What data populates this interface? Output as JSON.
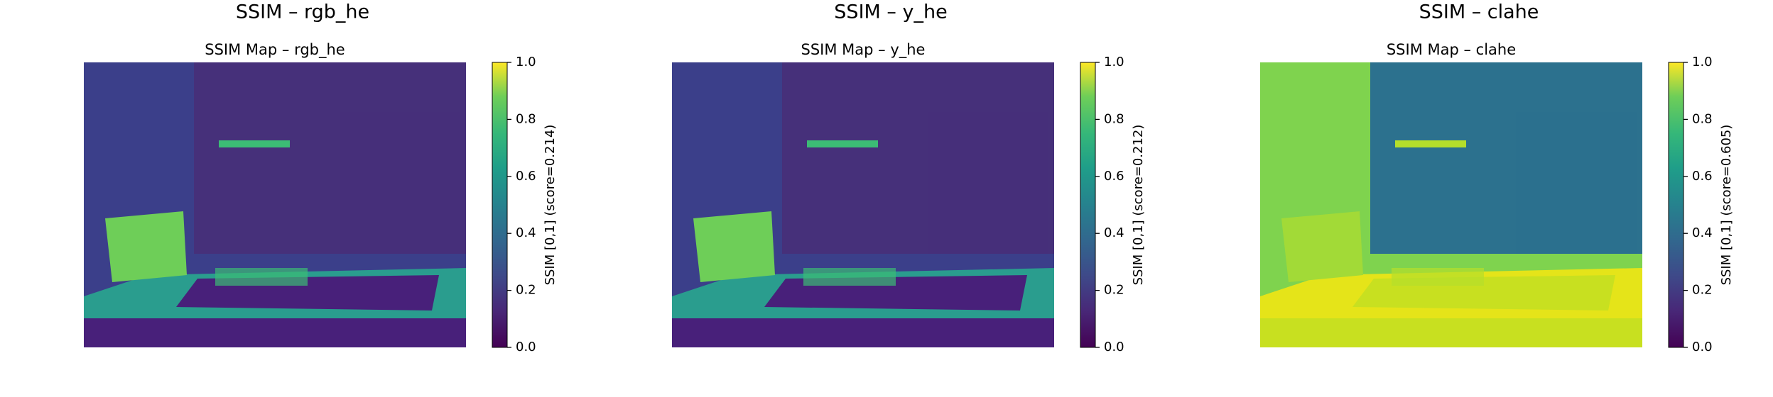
{
  "chart_data": [
    {
      "type": "heatmap",
      "title": "SSIM – rgb_he",
      "subtitle": "SSIM Map – rgb_he",
      "colorbar_label": "SSIM [0,1] (score=0.214)",
      "colormap": "viridis",
      "clim": [
        0,
        1
      ],
      "cticks": [
        {
          "value": 0,
          "label": "0.0"
        },
        {
          "value": 0.2,
          "label": "0.2"
        },
        {
          "value": 0.4,
          "label": "0.4"
        },
        {
          "value": 0.6,
          "label": "0.6"
        },
        {
          "value": 0.8,
          "label": "0.8"
        },
        {
          "value": 1,
          "label": "1.0"
        }
      ]
    },
    {
      "type": "heatmap",
      "title": "SSIM – y_he",
      "subtitle": "SSIM Map – y_he",
      "colorbar_label": "SSIM [0,1] (score=0.212)",
      "colormap": "viridis",
      "clim": [
        0,
        1
      ],
      "cticks": [
        {
          "value": 0,
          "label": "0.0"
        },
        {
          "value": 0.2,
          "label": "0.2"
        },
        {
          "value": 0.4,
          "label": "0.4"
        },
        {
          "value": 0.6,
          "label": "0.6"
        },
        {
          "value": 0.8,
          "label": "0.8"
        },
        {
          "value": 1,
          "label": "1.0"
        }
      ]
    },
    {
      "type": "heatmap",
      "title": "SSIM – clahe",
      "subtitle": "SSIM Map – clahe",
      "colorbar_label": "SSIM [0,1] (score=0.605)",
      "colormap": "viridis",
      "clim": [
        0,
        1
      ],
      "cticks": [
        {
          "value": 0,
          "label": "0.0"
        },
        {
          "value": 0.2,
          "label": "0.2"
        },
        {
          "value": 0.4,
          "label": "0.4"
        },
        {
          "value": 0.6,
          "label": "0.6"
        },
        {
          "value": 0.8,
          "label": "0.8"
        },
        {
          "value": 1,
          "label": "1.0"
        }
      ]
    }
  ]
}
